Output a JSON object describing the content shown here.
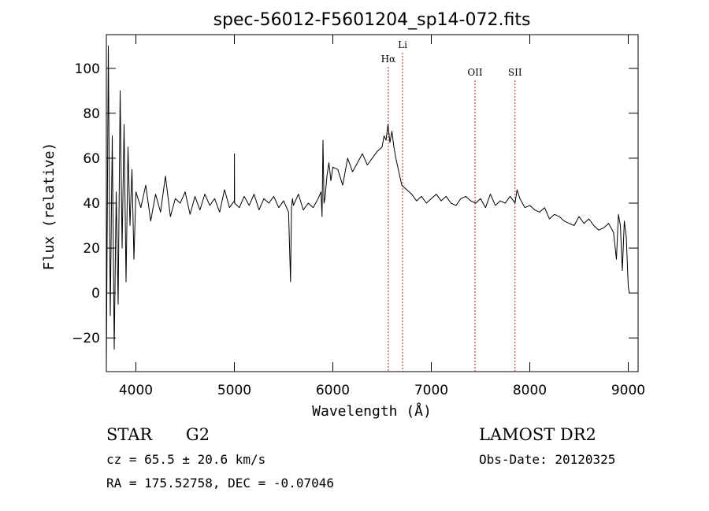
{
  "chart_data": {
    "type": "line",
    "title": "spec-56012-F5601204_sp14-072.fits",
    "xlabel": "Wavelength (Å)",
    "ylabel": "Flux (relative)",
    "xlim": [
      3700,
      9100
    ],
    "ylim": [
      -35,
      115
    ],
    "xticks": [
      4000,
      5000,
      6000,
      7000,
      8000,
      9000
    ],
    "yticks": [
      -20,
      0,
      20,
      40,
      60,
      80,
      100
    ],
    "grid": false,
    "line_color": "#000000",
    "marker_color": "#b22222",
    "series": [
      {
        "x": [
          3700,
          3720,
          3740,
          3760,
          3780,
          3800,
          3820,
          3840,
          3860,
          3880,
          3900,
          3920,
          3940,
          3960,
          3980,
          4000,
          4050,
          4100,
          4150,
          4200,
          4250,
          4300,
          4350,
          4400,
          4450,
          4500,
          4550,
          4600,
          4650,
          4700,
          4750,
          4800,
          4850,
          4900,
          4950,
          5000,
          5001,
          5002,
          5050,
          5100,
          5150,
          5200,
          5250,
          5300,
          5350,
          5400,
          5450,
          5500,
          5550,
          5570,
          5580,
          5590,
          5600,
          5650,
          5700,
          5750,
          5800,
          5850,
          5880,
          5890,
          5900,
          5910,
          5920,
          5940,
          5960,
          5980,
          6000,
          6050,
          6100,
          6150,
          6200,
          6250,
          6300,
          6350,
          6400,
          6450,
          6500,
          6520,
          6540,
          6560,
          6580,
          6600,
          6620,
          6640,
          6660,
          6680,
          6700,
          6750,
          6800,
          6850,
          6900,
          6950,
          7000,
          7050,
          7100,
          7150,
          7200,
          7250,
          7300,
          7350,
          7400,
          7450,
          7500,
          7550,
          7600,
          7650,
          7700,
          7750,
          7800,
          7850,
          7870,
          7900,
          7950,
          8000,
          8050,
          8100,
          8150,
          8200,
          8250,
          8300,
          8350,
          8400,
          8450,
          8500,
          8550,
          8600,
          8650,
          8700,
          8750,
          8800,
          8850,
          8880,
          8900,
          8920,
          8940,
          8960,
          8980,
          9000,
          9010
        ],
        "y": [
          -33,
          110,
          -10,
          70,
          -25,
          45,
          -5,
          90,
          20,
          75,
          5,
          65,
          30,
          55,
          15,
          45,
          38,
          48,
          32,
          44,
          36,
          52,
          34,
          42,
          40,
          45,
          35,
          43,
          37,
          44,
          39,
          42,
          36,
          46,
          38,
          41,
          62,
          40,
          38,
          43,
          39,
          44,
          37,
          42,
          40,
          43,
          38,
          41,
          36,
          5,
          38,
          42,
          39,
          44,
          37,
          40,
          38,
          42,
          45,
          34,
          68,
          40,
          42,
          52,
          58,
          50,
          56,
          55,
          48,
          60,
          54,
          58,
          62,
          57,
          60,
          63,
          65,
          70,
          68,
          75,
          67,
          72,
          65,
          60,
          56,
          52,
          48,
          46,
          44,
          41,
          43,
          40,
          42,
          44,
          41,
          43,
          40,
          39,
          42,
          43,
          41,
          40,
          42,
          38,
          44,
          39,
          41,
          40,
          43,
          40,
          46,
          42,
          38,
          39,
          37,
          36,
          38,
          33,
          35,
          34,
          32,
          31,
          30,
          34,
          31,
          33,
          30,
          28,
          29,
          31,
          27,
          15,
          35,
          30,
          10,
          32,
          25,
          3,
          0
        ]
      }
    ],
    "lines": [
      {
        "label": "Hα",
        "x": 6563
      },
      {
        "label": "Li",
        "x": 6708
      },
      {
        "label": "OII",
        "x": 7444
      },
      {
        "label": "SII",
        "x": 7850
      }
    ]
  },
  "info": {
    "class_type": "STAR",
    "subclass": "G2",
    "survey": "LAMOST DR2",
    "cz": "cz = 65.5 ± 20.6 km/s",
    "obs_date": "Obs-Date: 20120325",
    "coords": "RA = 175.52758, DEC =  -0.07046"
  }
}
